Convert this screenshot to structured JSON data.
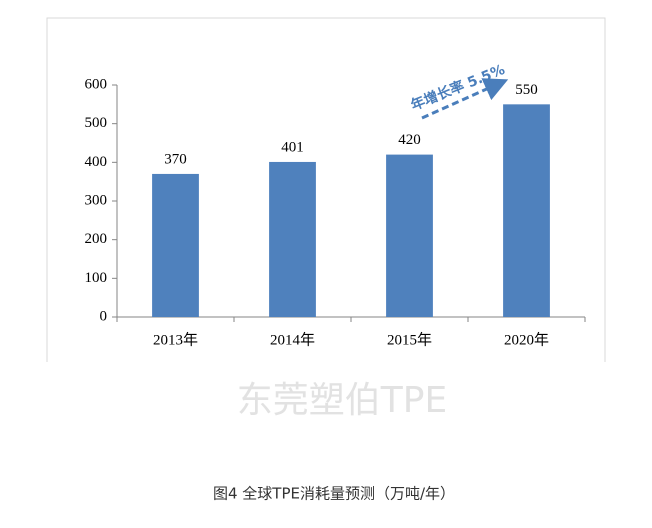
{
  "chart_data": {
    "type": "bar",
    "categories": [
      "2013年",
      "2014年",
      "2015年",
      "2020年"
    ],
    "values": [
      370,
      401,
      420,
      550
    ],
    "color": "#4f81bd",
    "ylim": [
      0,
      600
    ],
    "yticks": [
      0,
      100,
      200,
      300,
      400,
      500,
      600
    ],
    "annotation": "年增长率 5.5%",
    "watermark": "东莞塑伯TPE",
    "caption": "图4 全球TPE消耗量预测（万吨/年）"
  }
}
